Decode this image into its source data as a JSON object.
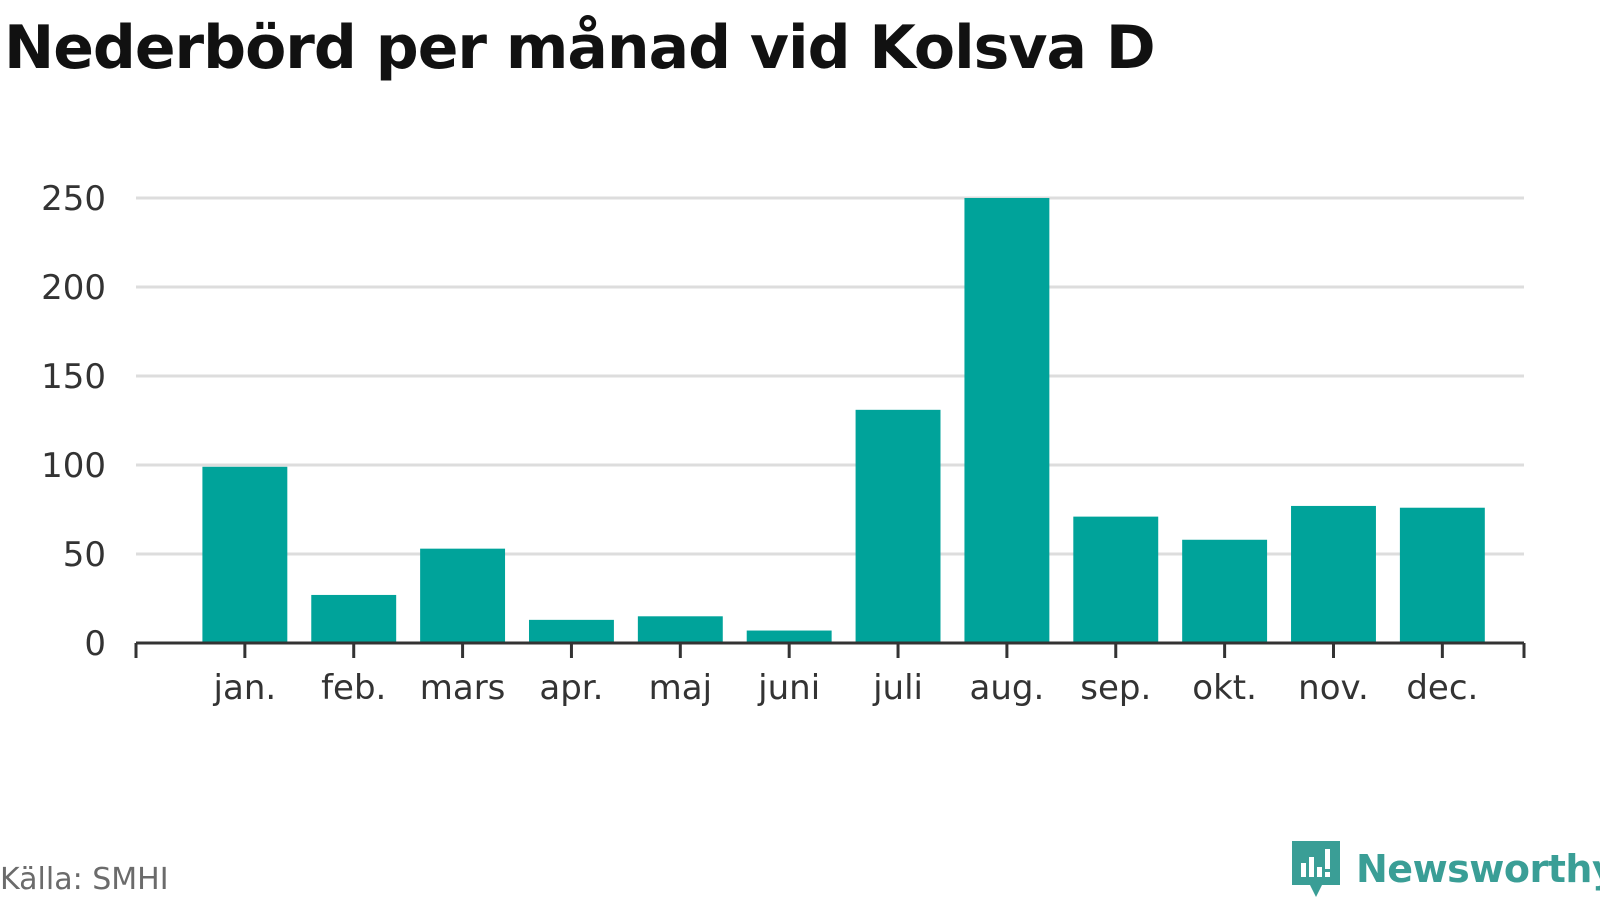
{
  "title": "Nederbörd per månad vid Kolsva D",
  "source": "Källa: SMHI",
  "brand": "Newsworthy",
  "colors": {
    "bar": "#00a39a",
    "grid": "#dddddd",
    "axis": "#333333",
    "brand": "#3a9e96"
  },
  "chart_data": {
    "type": "bar",
    "categories": [
      "jan.",
      "feb.",
      "mars",
      "apr.",
      "maj",
      "juni",
      "juli",
      "aug.",
      "sep.",
      "okt.",
      "nov.",
      "dec."
    ],
    "values": [
      99,
      27,
      53,
      13,
      15,
      7,
      131,
      250,
      71,
      58,
      77,
      76
    ],
    "yticks": [
      0,
      50,
      100,
      150,
      200,
      250
    ],
    "ylim": [
      0,
      250
    ],
    "grid": true,
    "legend": "none"
  }
}
